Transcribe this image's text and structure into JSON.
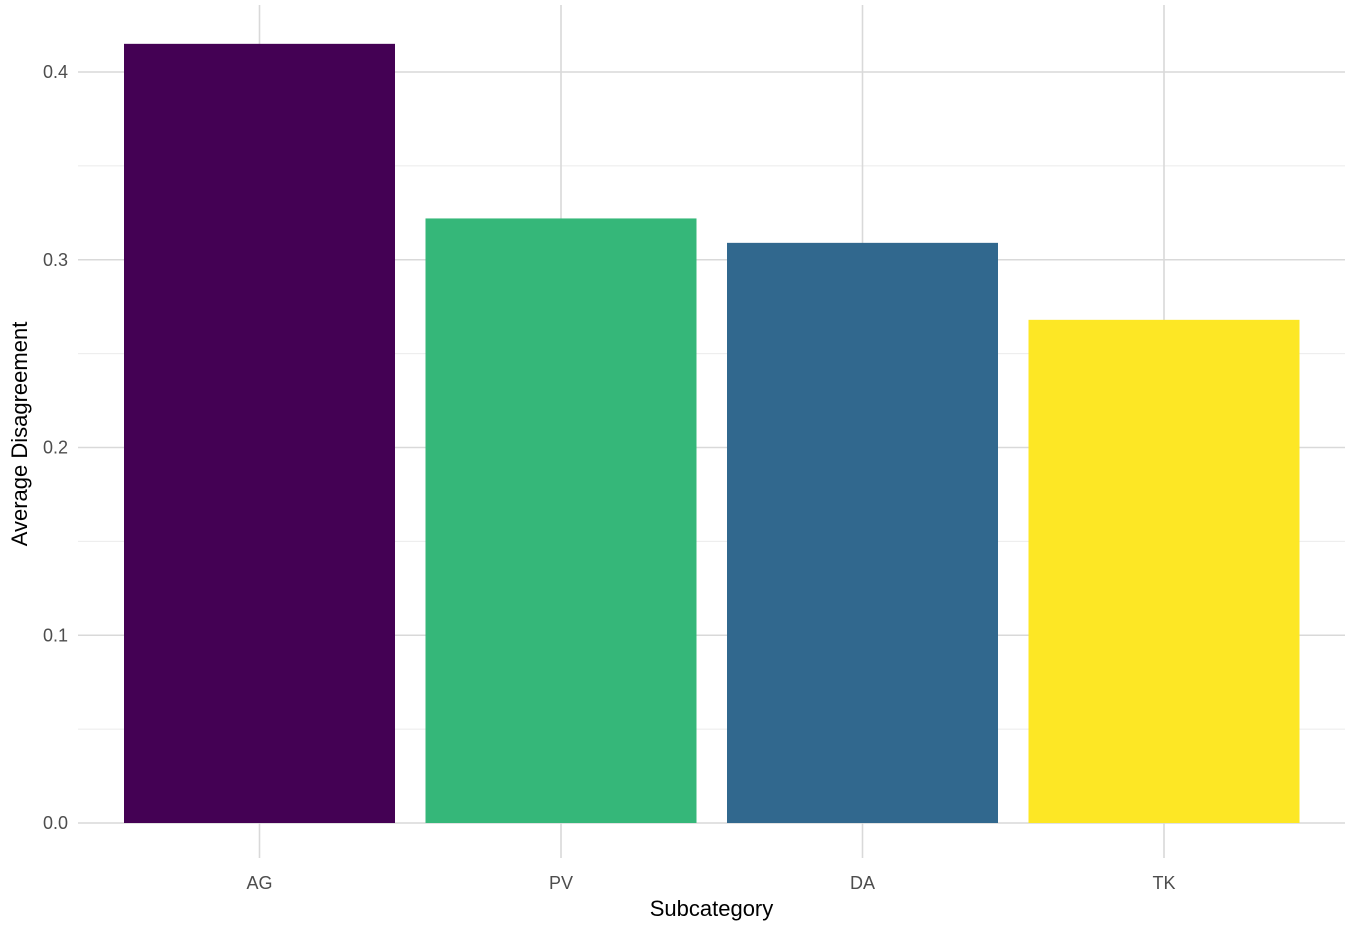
{
  "chart_data": {
    "type": "bar",
    "categories": [
      "AG",
      "PV",
      "DA",
      "TK"
    ],
    "values": [
      0.415,
      0.322,
      0.309,
      0.268
    ],
    "colors": [
      "#440154",
      "#35b779",
      "#31688e",
      "#fde725"
    ],
    "xlabel": "Subcategory",
    "ylabel": "Average Disagreement",
    "ylim": [
      0,
      0.43
    ],
    "yticks": [
      0.0,
      0.1,
      0.2,
      0.3,
      0.4
    ],
    "ytick_labels": [
      "0.0",
      "0.1",
      "0.2",
      "0.3",
      "0.4"
    ],
    "grid": true,
    "legend": "none"
  }
}
